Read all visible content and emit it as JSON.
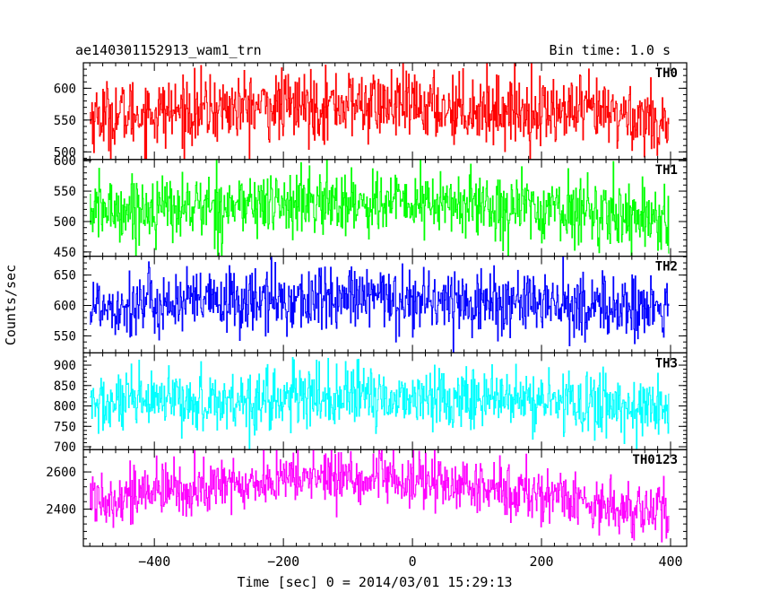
{
  "header": {
    "title": "ae140301152913_wam1_trn",
    "bin_time": "Bin time: 1.0 s"
  },
  "chart_data": {
    "type": "line",
    "xlabel": "Time [sec] 0 = 2014/03/01 15:29:13",
    "ylabel": "Counts/sec",
    "xlim": [
      -510,
      425
    ],
    "x_ticks": [
      -400,
      -200,
      0,
      200,
      400
    ],
    "x_tick_labels": [
      "−400",
      "−200",
      "0",
      "200",
      "400"
    ],
    "bin_seconds": 1.0,
    "x_range": [
      -500,
      397
    ],
    "series": [
      {
        "name": "TH0",
        "color": "#ff0000",
        "ylim": [
          488,
          640
        ],
        "yticks": [
          500,
          550,
          600
        ],
        "ytick_labels": [
          "500",
          "550",
          "600"
        ],
        "mean": 566,
        "spread": 27,
        "trend": [
          [
            -500,
            556
          ],
          [
            -250,
            570
          ],
          [
            -100,
            575
          ],
          [
            100,
            568
          ],
          [
            300,
            560
          ],
          [
            397,
            548
          ]
        ]
      },
      {
        "name": "TH1",
        "color": "#00ff00",
        "ylim": [
          443,
          602
        ],
        "yticks": [
          450,
          500,
          550,
          600
        ],
        "ytick_labels": [
          "450",
          "500",
          "550",
          "600"
        ],
        "mean": 524,
        "spread": 27,
        "trend": [
          [
            -500,
            518
          ],
          [
            -250,
            528
          ],
          [
            -100,
            532
          ],
          [
            100,
            527
          ],
          [
            300,
            515
          ],
          [
            397,
            505
          ]
        ]
      },
      {
        "name": "TH2",
        "color": "#0000ff",
        "ylim": [
          522,
          681
        ],
        "yticks": [
          550,
          600,
          650
        ],
        "ytick_labels": [
          "550",
          "600",
          "650"
        ],
        "mean": 606,
        "spread": 27,
        "trend": [
          [
            -500,
            600
          ],
          [
            -250,
            607
          ],
          [
            -50,
            612
          ],
          [
            100,
            606
          ],
          [
            300,
            598
          ],
          [
            397,
            592
          ]
        ]
      },
      {
        "name": "TH3",
        "color": "#00ffff",
        "ylim": [
          693,
          930
        ],
        "yticks": [
          700,
          750,
          800,
          850,
          900
        ],
        "ytick_labels": [
          "700",
          "750",
          "800",
          "850",
          "900"
        ],
        "mean": 812,
        "spread": 38,
        "trend": [
          [
            -500,
            802
          ],
          [
            -250,
            815
          ],
          [
            -100,
            822
          ],
          [
            100,
            818
          ],
          [
            300,
            804
          ],
          [
            397,
            790
          ]
        ]
      },
      {
        "name": "TH0123",
        "color": "#ff00ff",
        "ylim": [
          2200,
          2720
        ],
        "yticks": [
          2400,
          2600
        ],
        "ytick_labels": [
          "2400",
          "2600"
        ],
        "mean": 2520,
        "spread": 75,
        "trend": [
          [
            -500,
            2460
          ],
          [
            -300,
            2520
          ],
          [
            -150,
            2580
          ],
          [
            0,
            2550
          ],
          [
            200,
            2480
          ],
          [
            397,
            2370
          ]
        ]
      }
    ]
  }
}
